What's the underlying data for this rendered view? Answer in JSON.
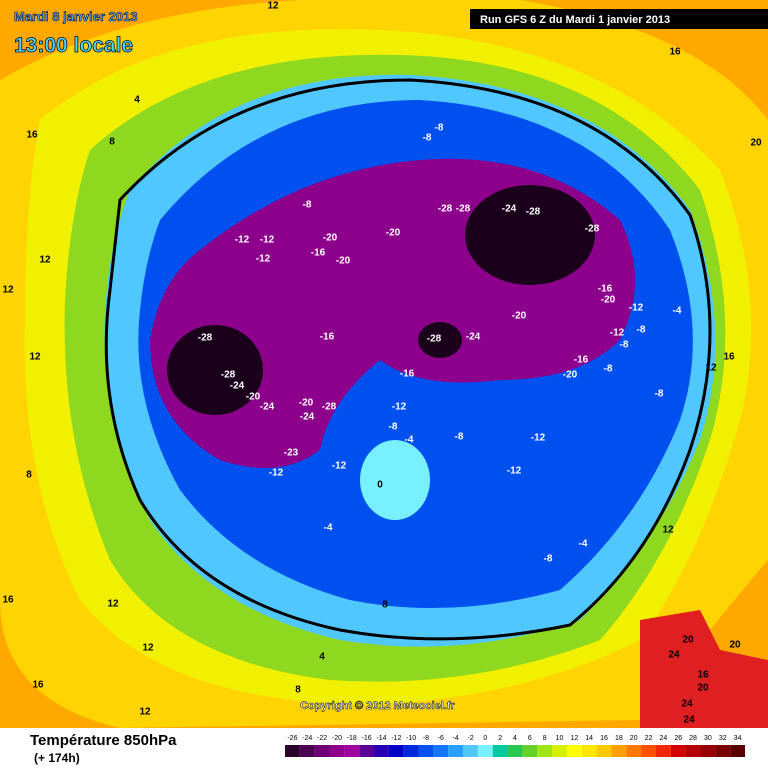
{
  "header": {
    "date": "Mardi 8 janvier 2013",
    "time": "13:00 locale",
    "run": "Run GFS 6 Z du Mardi 1 janvier 2013"
  },
  "footer": {
    "title": "Température 850hPa",
    "lead": "(+ 174h)",
    "copyright": "Copyright © 2012 Meteociel.fr"
  },
  "scale": {
    "values": [
      -26,
      -24,
      -22,
      -20,
      -18,
      -16,
      -14,
      -12,
      -10,
      -8,
      -6,
      -4,
      -2,
      0,
      2,
      4,
      6,
      8,
      10,
      12,
      14,
      16,
      18,
      20,
      22,
      24,
      26,
      28,
      30,
      32,
      34
    ],
    "colors": [
      "#2a002a",
      "#4b0050",
      "#6e0073",
      "#8c008c",
      "#a000a0",
      "#5a0096",
      "#2800b4",
      "#0000c8",
      "#0028dc",
      "#0050f0",
      "#1478ff",
      "#28a0ff",
      "#50c8ff",
      "#78f0ff",
      "#00c8a0",
      "#28c850",
      "#64d228",
      "#a0e614",
      "#d2f000",
      "#ffff00",
      "#ffe600",
      "#ffc800",
      "#ffa000",
      "#ff7800",
      "#ff5000",
      "#f02800",
      "#d20000",
      "#b40000",
      "#960000",
      "#780000",
      "#5a0000"
    ]
  },
  "contour_labels": [
    -28,
    -28,
    -24,
    -20,
    -24,
    -20,
    -28,
    -24,
    -23,
    -12,
    -12,
    -16,
    -16,
    -12,
    -8,
    -4,
    -8,
    -12,
    -12,
    0,
    -4,
    -4,
    -8,
    -28,
    -24,
    -20,
    -28,
    -28,
    -24,
    -28,
    -28,
    -20,
    -20,
    -20,
    -16,
    -12,
    -12,
    -12,
    -8,
    -8,
    -8,
    -16,
    -20,
    -12,
    -12,
    -8,
    -8,
    -16,
    -20,
    -8,
    -4,
    -8,
    4,
    8,
    16,
    12,
    16,
    20,
    12,
    12,
    12,
    8,
    16,
    12,
    12,
    16,
    12,
    8,
    4,
    8,
    20,
    24,
    24,
    24,
    16,
    20,
    20,
    16,
    12,
    12
  ]
}
